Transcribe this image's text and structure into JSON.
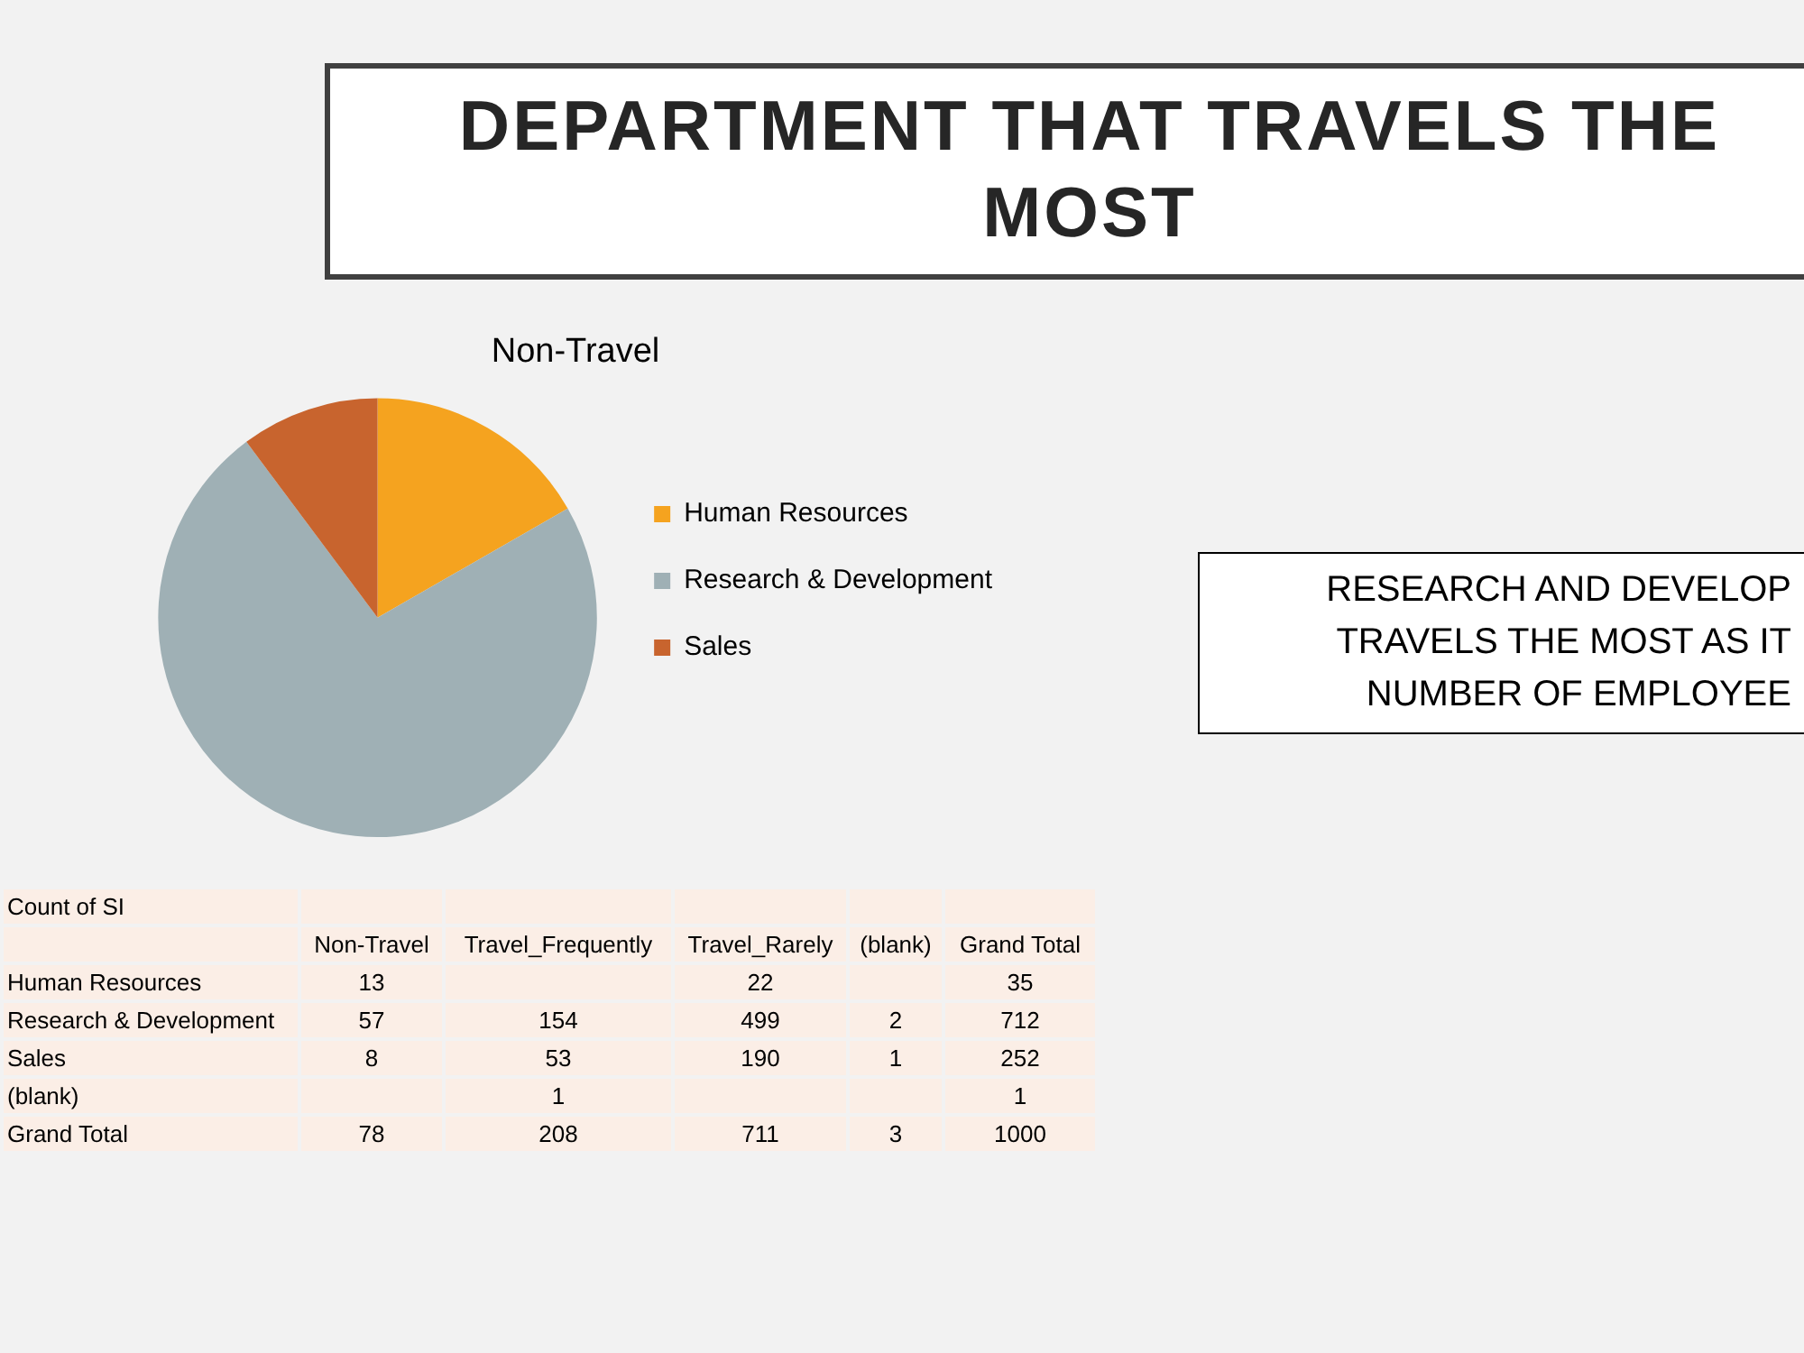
{
  "chart_data": [
    {
      "type": "other",
      "title": "DEPARTMENT THAT TRAVELS THE MOST",
      "annotations": [
        "RESEARCH AND DEVELOP\nTRAVELS THE MOST AS IT\nNUMBER OF EMPLOYEE"
      ]
    },
    {
      "type": "pie",
      "title": "Non-Travel",
      "categories": [
        "Human Resources",
        "Research & Development",
        "Sales"
      ],
      "values": [
        16.7,
        73.1,
        10.2
      ],
      "colors": [
        "#f5a31f",
        "#9fb0b5",
        "#c8642e"
      ],
      "legend": "right"
    },
    {
      "type": "heatmap",
      "title": "Count of SI",
      "data_labels": true,
      "categories": [
        "Non-Travel",
        "Travel_Frequently",
        "Travel_Rarely",
        "(blank)",
        "Grand Total"
      ],
      "y_categories": [
        "Human Resources",
        "Research & Development",
        "Sales",
        "(blank)",
        "Grand Total"
      ],
      "cells": [
        [
          13,
          null,
          22,
          null,
          35
        ],
        [
          57,
          154,
          499,
          2,
          712
        ],
        [
          8,
          53,
          190,
          1,
          252
        ],
        [
          null,
          1,
          null,
          null,
          1
        ],
        [
          78,
          208,
          711,
          3,
          1000
        ]
      ]
    }
  ]
}
